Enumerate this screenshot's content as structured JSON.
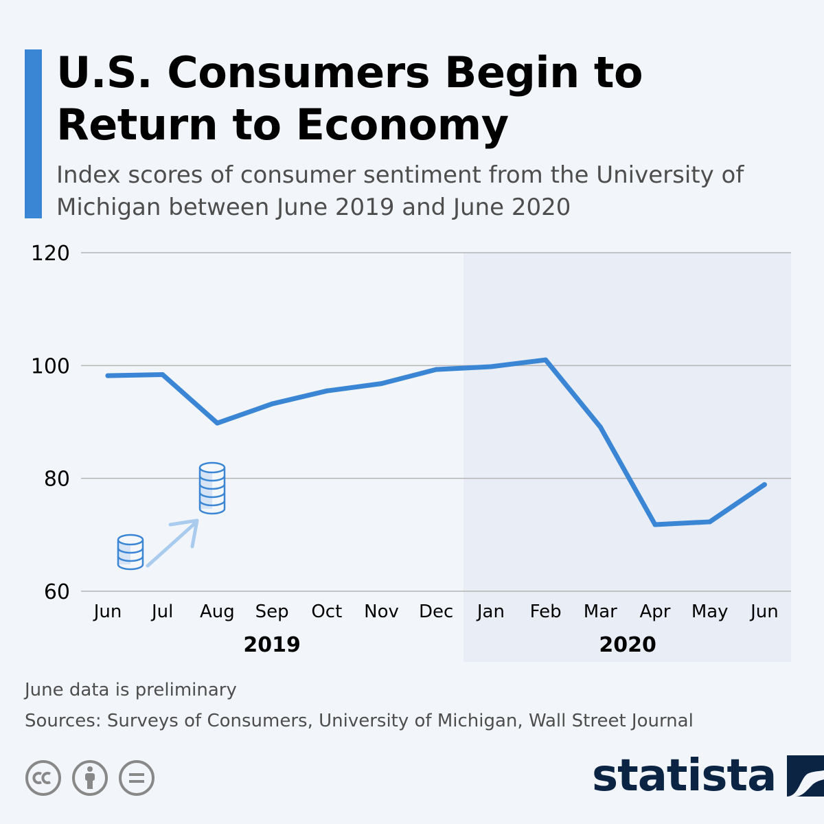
{
  "header": {
    "title": "U.S. Consumers Begin to Return to Economy",
    "subtitle": "Index scores of consumer sentiment from the University of Michigan between June 2019 and June 2020"
  },
  "chart_data": {
    "type": "line",
    "categories": [
      "Jun",
      "Jul",
      "Aug",
      "Sep",
      "Oct",
      "Nov",
      "Dec",
      "Jan",
      "Feb",
      "Mar",
      "Apr",
      "May",
      "Jun"
    ],
    "series": [
      {
        "values": [
          98.2,
          98.4,
          89.8,
          93.2,
          95.5,
          96.8,
          99.3,
          99.8,
          101.0,
          89.1,
          71.8,
          72.3,
          78.9
        ]
      }
    ],
    "ylim": [
      60,
      120
    ],
    "yticks": [
      60,
      80,
      100,
      120
    ],
    "year_groups": [
      {
        "label": "2019",
        "first": 0,
        "last": 6
      },
      {
        "label": "2020",
        "first": 7,
        "last": 12,
        "shaded": true
      }
    ],
    "grid": true,
    "colors": {
      "line": "#3a86d5",
      "shade": "#e8edf6",
      "grid": "#b4b4b4"
    }
  },
  "footer": {
    "note": "June data is preliminary",
    "sources": "Sources: Surveys of Consumers, University of Michigan, Wall Street Journal",
    "brand": "statista",
    "license_icons": [
      "cc-icon",
      "attribution-icon",
      "no-derivatives-icon"
    ]
  }
}
